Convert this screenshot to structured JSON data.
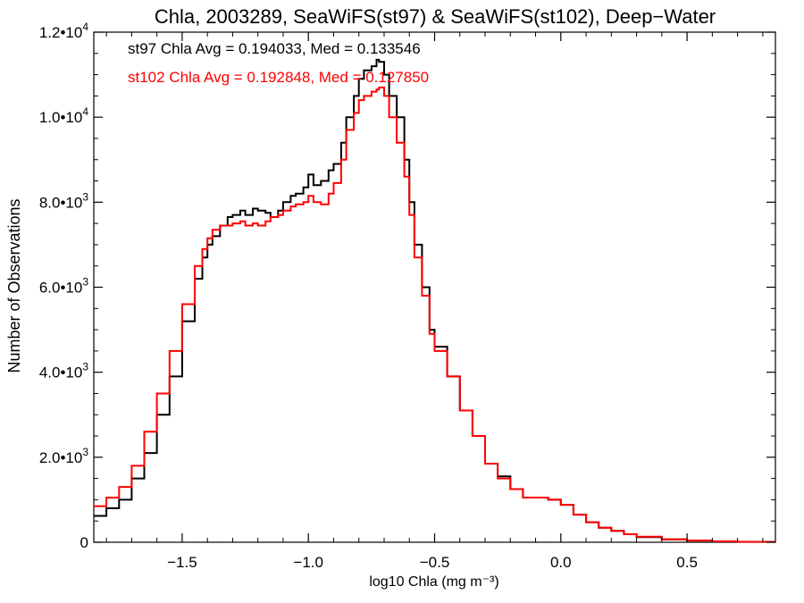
{
  "chart_data": {
    "type": "line",
    "title": "Chla, 2003289, SeaWiFS(st97) & SeaWiFS(st102), Deep−Water",
    "xlabel": "log10 Chla (mg m⁻³)",
    "ylabel": "Number of Observations",
    "xlim": [
      -1.85,
      0.85
    ],
    "ylim": [
      0,
      12000
    ],
    "x_ticks": [
      {
        "value": -1.5,
        "label": "−1.5"
      },
      {
        "value": -1.0,
        "label": "−1.0"
      },
      {
        "value": -0.5,
        "label": "−0.5"
      },
      {
        "value": 0.0,
        "label": "0.0"
      },
      {
        "value": 0.5,
        "label": "0.5"
      }
    ],
    "y_ticks": [
      {
        "value": 0,
        "mantissa": "0",
        "exp": ""
      },
      {
        "value": 2000,
        "mantissa": "2.0•10",
        "exp": "3"
      },
      {
        "value": 4000,
        "mantissa": "4.0•10",
        "exp": "3"
      },
      {
        "value": 6000,
        "mantissa": "6.0•10",
        "exp": "3"
      },
      {
        "value": 8000,
        "mantissa": "8.0•10",
        "exp": "3"
      },
      {
        "value": 10000,
        "mantissa": "1.0•10",
        "exp": "4"
      },
      {
        "value": 12000,
        "mantissa": "1.2•10",
        "exp": "4"
      }
    ],
    "grid": false,
    "annotations": [
      {
        "text": "st97 Chla Avg = 0.194033, Med = 0.133546",
        "color": "#000000"
      },
      {
        "text": "st102 Chla Avg = 0.192848, Med = 0.127850",
        "color": "#ff0000"
      }
    ],
    "series": [
      {
        "color": "#000000",
        "x": [
          -1.85,
          -1.8,
          -1.75,
          -1.7,
          -1.65,
          -1.6,
          -1.55,
          -1.5,
          -1.45,
          -1.42,
          -1.4,
          -1.38,
          -1.35,
          -1.32,
          -1.3,
          -1.27,
          -1.25,
          -1.22,
          -1.2,
          -1.17,
          -1.15,
          -1.12,
          -1.1,
          -1.07,
          -1.05,
          -1.02,
          -1.0,
          -0.98,
          -0.95,
          -0.92,
          -0.9,
          -0.87,
          -0.85,
          -0.82,
          -0.8,
          -0.78,
          -0.75,
          -0.73,
          -0.72,
          -0.7,
          -0.68,
          -0.65,
          -0.62,
          -0.6,
          -0.58,
          -0.55,
          -0.52,
          -0.5,
          -0.45,
          -0.4,
          -0.35,
          -0.3,
          -0.25,
          -0.2,
          -0.15,
          -0.1,
          -0.05,
          0.0,
          0.05,
          0.1,
          0.15,
          0.2,
          0.25,
          0.3,
          0.4,
          0.5,
          0.6,
          0.7,
          0.85
        ],
        "y": [
          620,
          800,
          1000,
          1500,
          2100,
          3000,
          3900,
          5200,
          6200,
          6700,
          7000,
          7200,
          7450,
          7650,
          7700,
          7800,
          7700,
          7850,
          7800,
          7750,
          7650,
          7800,
          8000,
          8150,
          8200,
          8350,
          8650,
          8400,
          8500,
          8750,
          8900,
          9400,
          10000,
          10500,
          10900,
          11100,
          11200,
          11350,
          11300,
          11000,
          10500,
          10000,
          9000,
          8000,
          7000,
          6000,
          5000,
          4600,
          3900,
          3100,
          2500,
          1850,
          1550,
          1250,
          1050,
          1050,
          1000,
          880,
          650,
          470,
          340,
          270,
          190,
          120,
          70,
          40,
          20,
          10,
          5
        ]
      },
      {
        "color": "#ff0000",
        "x": [
          -1.85,
          -1.8,
          -1.75,
          -1.7,
          -1.65,
          -1.6,
          -1.55,
          -1.5,
          -1.45,
          -1.42,
          -1.4,
          -1.38,
          -1.35,
          -1.32,
          -1.3,
          -1.27,
          -1.25,
          -1.22,
          -1.2,
          -1.17,
          -1.15,
          -1.12,
          -1.1,
          -1.07,
          -1.05,
          -1.02,
          -1.0,
          -0.98,
          -0.95,
          -0.92,
          -0.9,
          -0.87,
          -0.85,
          -0.82,
          -0.8,
          -0.78,
          -0.75,
          -0.73,
          -0.72,
          -0.7,
          -0.68,
          -0.65,
          -0.62,
          -0.6,
          -0.58,
          -0.55,
          -0.52,
          -0.5,
          -0.45,
          -0.4,
          -0.35,
          -0.3,
          -0.25,
          -0.2,
          -0.15,
          -0.1,
          -0.05,
          0.0,
          0.05,
          0.1,
          0.15,
          0.2,
          0.25,
          0.3,
          0.4,
          0.5,
          0.6,
          0.7,
          0.85
        ],
        "y": [
          850,
          1050,
          1300,
          1800,
          2600,
          3500,
          4500,
          5600,
          6500,
          6900,
          7150,
          7350,
          7450,
          7450,
          7500,
          7550,
          7450,
          7500,
          7450,
          7550,
          7650,
          7700,
          7800,
          7900,
          7950,
          8000,
          8150,
          8000,
          7950,
          8200,
          8450,
          9000,
          9700,
          10100,
          10400,
          10500,
          10600,
          10650,
          10700,
          10500,
          10000,
          9400,
          8600,
          7700,
          6700,
          5800,
          4900,
          4500,
          3900,
          3100,
          2500,
          1850,
          1500,
          1250,
          1050,
          1050,
          1000,
          880,
          650,
          470,
          340,
          270,
          190,
          130,
          70,
          40,
          20,
          10,
          5
        ]
      }
    ]
  }
}
